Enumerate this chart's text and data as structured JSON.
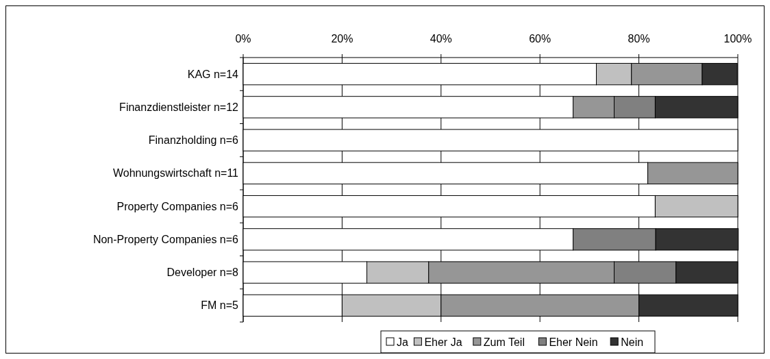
{
  "chart_data": {
    "type": "bar",
    "orientation": "horizontal",
    "stacked": true,
    "categories": [
      "KAG n=14",
      "Finanzdienstleister n=12",
      "Finanzholding n=6",
      "Wohnungswirtschaft n=11",
      "Property Companies n=6",
      "Non-Property Companies n=6",
      "Developer n=8",
      "FM n=5"
    ],
    "series": [
      {
        "name": "Ja",
        "color": "#ffffff",
        "values": [
          71.4,
          66.7,
          100,
          81.8,
          83.3,
          66.7,
          25,
          20
        ]
      },
      {
        "name": "Eher Ja",
        "color": "#c0c0c0",
        "values": [
          7.1,
          0,
          0,
          0,
          16.7,
          0,
          12.5,
          20
        ]
      },
      {
        "name": "Zum Teil",
        "color": "#969696",
        "values": [
          14.3,
          8.3,
          0,
          18.2,
          0,
          0,
          37.5,
          40
        ]
      },
      {
        "name": "Eher Nein",
        "color": "#808080",
        "values": [
          0,
          8.3,
          0,
          0,
          0,
          16.7,
          12.5,
          0
        ]
      },
      {
        "name": "Nein",
        "color": "#333333",
        "values": [
          7.1,
          16.7,
          0,
          0,
          0,
          16.7,
          12.5,
          20
        ]
      }
    ],
    "xlim": [
      0,
      100
    ],
    "xticks": [
      {
        "value": 0,
        "label": "0%"
      },
      {
        "value": 20,
        "label": "20%"
      },
      {
        "value": 40,
        "label": "40%"
      },
      {
        "value": 60,
        "label": "60%"
      },
      {
        "value": 80,
        "label": "80%"
      },
      {
        "value": 100,
        "label": "100%"
      }
    ],
    "grid": "x",
    "legend": "bottom"
  }
}
